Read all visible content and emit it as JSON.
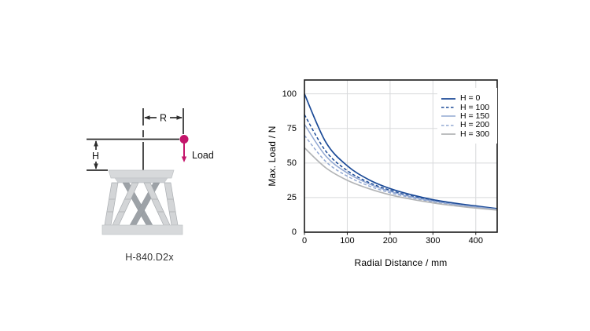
{
  "diagram": {
    "r_label": "R",
    "h_label": "H",
    "load_label": "Load",
    "caption": "H-840.D2x",
    "accent_color": "#c4156b",
    "line_color": "#2d2d2d"
  },
  "chart_data": {
    "type": "line",
    "title": "",
    "xlabel": "Radial Distance / mm",
    "ylabel": "Max. Load / N",
    "xlim": [
      0,
      450
    ],
    "ylim": [
      0,
      110
    ],
    "x_ticks": [
      0,
      100,
      200,
      300,
      400
    ],
    "y_ticks": [
      0,
      25,
      50,
      75,
      100
    ],
    "grid": true,
    "grid_color": "#d8d9db",
    "frame_color": "#1a1a1a",
    "legend_position": "top-right",
    "x": [
      0,
      50,
      100,
      150,
      200,
      250,
      300,
      350,
      400,
      450
    ],
    "series": [
      {
        "name": "H = 0",
        "color": "#1b4a97",
        "dash": "solid",
        "width": 1.7,
        "values": [
          100,
          65,
          48,
          38,
          31.5,
          27,
          23.5,
          21,
          19,
          17
        ]
      },
      {
        "name": "H = 100",
        "color": "#1b4a97",
        "dash": "dashed",
        "width": 1.5,
        "values": [
          85,
          58.5,
          44.5,
          36,
          30.3,
          26,
          23,
          20.5,
          18.4,
          16.8
        ]
      },
      {
        "name": "H = 150",
        "color": "#92a8d2",
        "dash": "solid",
        "width": 1.5,
        "values": [
          78,
          55,
          42.8,
          35,
          29.5,
          25.5,
          22.5,
          20.1,
          18.2,
          16.6
        ]
      },
      {
        "name": "H = 200",
        "color": "#92a8d2",
        "dash": "dashed",
        "width": 1.5,
        "values": [
          70,
          51,
          40.5,
          33.5,
          28.5,
          24.9,
          22,
          19.8,
          17.9,
          16.4
        ]
      },
      {
        "name": "H = 300",
        "color": "#b2b4b6",
        "dash": "solid",
        "width": 1.7,
        "values": [
          61,
          46.5,
          37.5,
          31.5,
          27,
          23.8,
          21.2,
          19.1,
          17.4,
          16
        ]
      }
    ]
  }
}
